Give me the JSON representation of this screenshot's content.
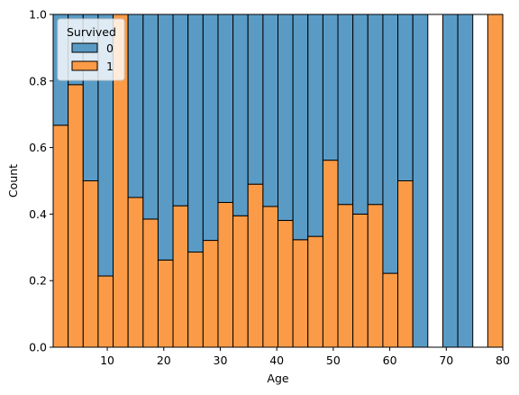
{
  "chart_data": {
    "type": "bar",
    "stacking": "fill",
    "xlabel": "Age",
    "ylabel": "Count",
    "xlim": [
      0.42,
      80
    ],
    "ylim": [
      0,
      1
    ],
    "xticks": [
      10,
      20,
      30,
      40,
      50,
      60,
      70,
      80
    ],
    "yticks": [
      "0.0",
      "0.2",
      "0.4",
      "0.6",
      "0.8",
      "1.0"
    ],
    "yticks_values": [
      0,
      0.2,
      0.4,
      0.6,
      0.8,
      1.0
    ],
    "grid": false,
    "legend": {
      "title": "Survived",
      "placement": "top-left",
      "entries": [
        "0",
        "1"
      ]
    },
    "series": [
      {
        "name": "0",
        "color": "#5a9bc6",
        "values": [
          0.333,
          0.211,
          0.5,
          0.786,
          0.0,
          0.55,
          0.615,
          0.738,
          0.575,
          0.714,
          0.679,
          0.565,
          0.605,
          0.51,
          0.577,
          0.619,
          0.677,
          0.667,
          0.438,
          0.571,
          0.6,
          0.571,
          0.778,
          0.5,
          1.0,
          0.0,
          1.0,
          1.0,
          0.0,
          0.0
        ]
      },
      {
        "name": "1",
        "color": "#fc9b47",
        "values": [
          0.667,
          0.789,
          0.5,
          0.214,
          1.0,
          0.45,
          0.385,
          0.262,
          0.425,
          0.286,
          0.321,
          0.435,
          0.395,
          0.49,
          0.423,
          0.381,
          0.323,
          0.333,
          0.562,
          0.429,
          0.4,
          0.429,
          0.222,
          0.5,
          0.0,
          0.0,
          0.0,
          0.0,
          0.0,
          1.0
        ]
      }
    ],
    "bin_edges": [
      0.42,
      3.07,
      5.73,
      8.38,
      11.03,
      13.68,
      16.34,
      18.99,
      21.64,
      24.29,
      26.95,
      29.6,
      32.25,
      34.9,
      37.56,
      40.21,
      42.86,
      45.51,
      48.17,
      50.82,
      53.47,
      56.12,
      58.78,
      61.43,
      64.08,
      66.73,
      69.39,
      72.04,
      74.69,
      77.34,
      80.0
    ]
  }
}
